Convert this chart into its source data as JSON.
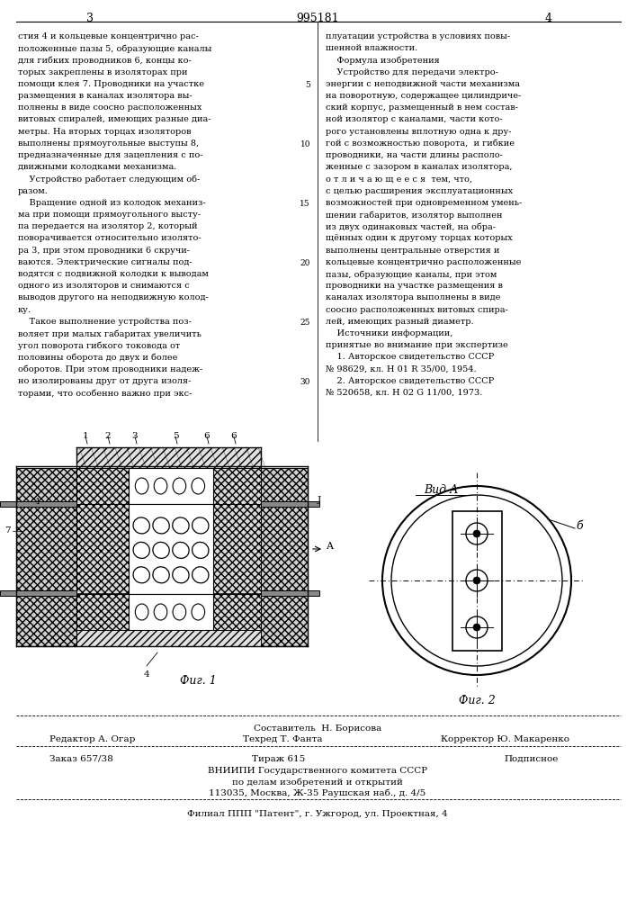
{
  "bg_color": "#ffffff",
  "page_number_left": "3",
  "page_number_center": "995181",
  "page_number_right": "4",
  "left_col_text": [
    "стия 4 и кольцевые концентрично рас-",
    "положенные пазы 5, образующие каналы",
    "для гибких проводников 6, концы ко-",
    "торых закреплены в изоляторах при",
    "помощи клея 7. Проводники на участке",
    "размещения в каналах изолятора вы-",
    "полнены в виде соосно расположенных",
    "витовых спиралей, имеющих разные диа-",
    "метры. На вторых торцах изоляторов",
    "выполнены прямоугольные выступы 8,",
    "предназначенные для зацепления с по-",
    "движными колодками механизма.",
    "    Устройство работает следующим об-",
    "разом.",
    "    Вращение одной из колодок механиз-",
    "ма при помощи прямоугольного высту-",
    "па передается на изолятор 2, который",
    "поворачивается относительно изолято-",
    "ра 3, при этом проводники 6 скручи-",
    "ваются. Электрические сигналы под-",
    "водятся с подвижной колодки к выводам",
    "одного из изоляторов и снимаются с",
    "выводов другого на неподвижную колод-",
    "ку.",
    "    Такое выполнение устройства поз-",
    "воляет при малых габаритах увеличить",
    "угол поворота гибкого токовода от",
    "половины оборота до двух и более",
    "оборотов. При этом проводники надеж-",
    "но изолированы друг от друга изоля-",
    "торами, что особенно важно при экс-"
  ],
  "right_col_text": [
    "плуатации устройства в условиях повы-",
    "шенной влажности.",
    "    Формула изобретения",
    "    Устройство для передачи электро-",
    "энергии с неподвижной части механизма",
    "на поворотную, содержащее цилиндриче-",
    "ский корпус, размещенный в нем состав-",
    "ной изолятор с каналами, части кото-",
    "рого установлены вплотную одна к дру-",
    "гой с возможностью поворота,  и гибкие",
    "проводники, на части длины располо-",
    "женные с зазором в каналах изолятора,",
    "о т л и ч а ю щ е е с я  тем, что,",
    "с целью расширения эксплуатационных",
    "возможностей при одновременном умень-",
    "шении габаритов, изолятор выполнен",
    "из двух одинаковых частей, на обра-",
    "щённых один к другому торцах которых",
    "выполнены центральные отверстия и",
    "кольцевые концентрично расположенные",
    "пазы, образующие каналы, при этом",
    "проводники на участке размещения в",
    "каналах изолятора выполнены в виде",
    "соосно расположенных витовых спира-",
    "лей, имеющих разный диаметр.",
    "    Источники информации,",
    "принятые во внимание при экспертизе",
    "    1. Авторское свидетельство СССР",
    "№ 98629, кл. Н 01 R 35/00, 1954.",
    "    2. Авторское свидетельство СССР",
    "№ 520658, кл. Н 02 G 11/00, 1973."
  ],
  "staff_line1_center": "Составитель  Н. Борисова",
  "staff_line2_left": "Редактор А. Огар",
  "staff_line2_center": "Техред Т. Фанта",
  "staff_line2_right": "Корректор Ю. Макаренко",
  "order_left": "Заказ 657/38",
  "order_center": "Тираж 615",
  "order_right": "Подписное",
  "org_line1": "ВНИИПИ Государственного комитета СССР",
  "org_line2": "по делам изобретений и открытий",
  "org_line3": "113035, Москва, Ж-35 Раушская наб., д. 4/5",
  "branch_line": "Филиал ППП \"Патент\", г. Ужгород, ул. Проектная, 4",
  "fig1_label": "Фиг. 1",
  "fig2_label": "Фиг. 2",
  "view_label": "Вид А",
  "line_numbers_left": [
    "5",
    "10",
    "15",
    "20",
    "25",
    "30"
  ],
  "line_numbers_right": [
    "5",
    "10",
    "15",
    "20",
    "25",
    "30"
  ]
}
